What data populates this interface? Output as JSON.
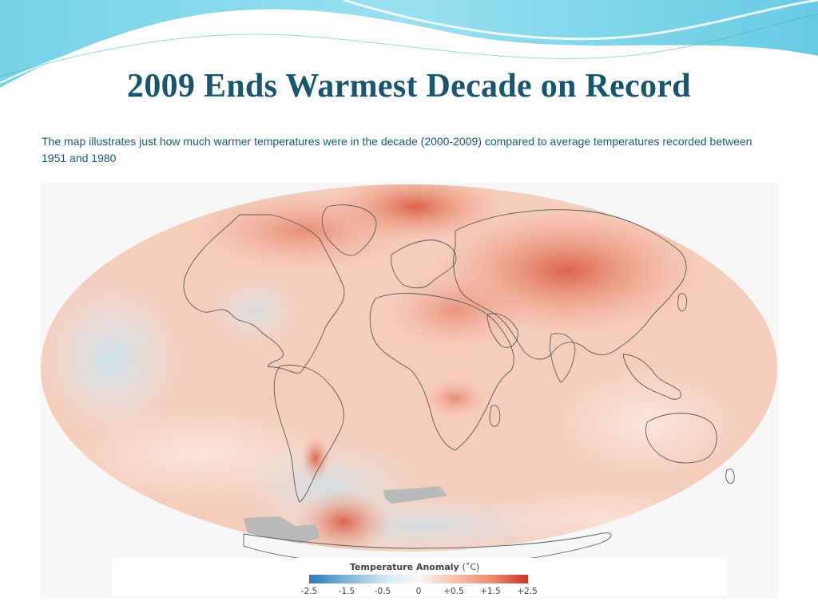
{
  "slide": {
    "title": "2009 Ends Warmest Decade on Record",
    "description": "The map illustrates just how much warmer temperatures were in the decade (2000-2009) compared to average temperatures recorded between 1951 and 1980"
  },
  "map": {
    "projection": "Mollweide",
    "coloring": "temperature anomaly, warm (red) dominant",
    "legend": {
      "title": "Temperature Anomaly",
      "unit": "(˚C)",
      "ticks": [
        "-2.5",
        "-1.5",
        "-0.5",
        "0",
        "+0.5",
        "+1.5",
        "+2.5"
      ],
      "colors": [
        "#2c7bb6",
        "#7fb3d5",
        "#d6e9f3",
        "#f7f7f7",
        "#f6c9b6",
        "#eb8f6e",
        "#c9342f"
      ]
    }
  },
  "theme": {
    "title_color": "#17566e",
    "text_color": "#1a5d72",
    "wave_color": "#7fd6e8"
  }
}
